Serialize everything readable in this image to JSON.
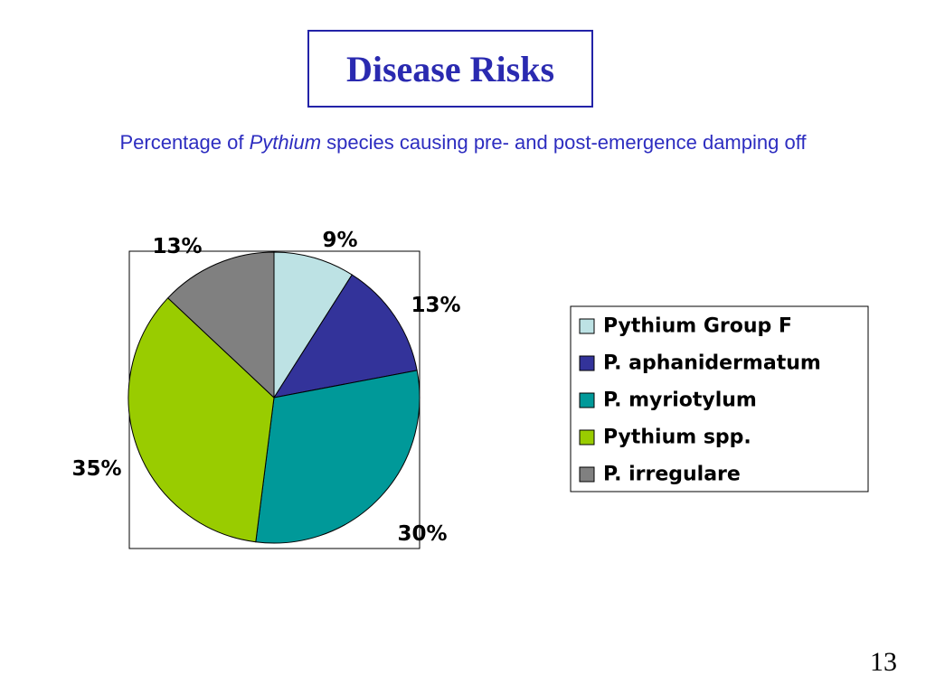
{
  "slide": {
    "title": "Disease Risks",
    "subtitle_pre": "Percentage of ",
    "subtitle_italic": "Pythium",
    "subtitle_post": " species causing pre- and post-emergence damping off",
    "page_number": "13"
  },
  "chart_data": {
    "type": "pie",
    "title": "",
    "categories": [
      "Pythium Group F",
      "P. aphanidermatum",
      "P. myriotylum",
      "Pythium spp.",
      "P. irregulare"
    ],
    "values": [
      9,
      13,
      30,
      35,
      13
    ],
    "labels": [
      "9%",
      "13%",
      "30%",
      "35%",
      "13%"
    ],
    "colors": [
      "#bde2e4",
      "#33339a",
      "#009999",
      "#99cc00",
      "#808080"
    ],
    "legend_placement": "right",
    "start": "12 o'clock",
    "direction": "clockwise"
  }
}
